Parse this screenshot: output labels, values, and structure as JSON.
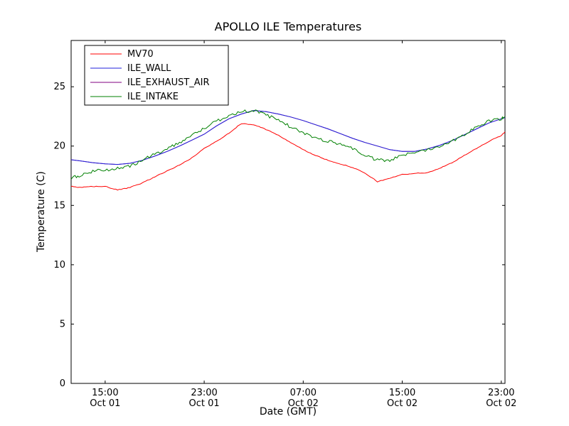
{
  "chart_data": {
    "type": "line",
    "title": "APOLLO ILE Temperatures",
    "xlabel": "Date (GMT)",
    "ylabel": "Temperature (C)",
    "x_description": "hours since Oct 01 00:00 GMT",
    "grid": false,
    "legend_position": "upper left",
    "background_color": "#ffffff",
    "frame_color": "#000000",
    "xlim": [
      12.25,
      47.3
    ],
    "ylim": [
      0,
      28.9
    ],
    "y_ticks": [
      0,
      5,
      10,
      15,
      20,
      25
    ],
    "x_ticks": [
      {
        "t": 15,
        "time": "15:00",
        "date": "Oct 01"
      },
      {
        "t": 23,
        "time": "23:00",
        "date": "Oct 01"
      },
      {
        "t": 31,
        "time": "07:00",
        "date": "Oct 02"
      },
      {
        "t": 39,
        "time": "15:00",
        "date": "Oct 02"
      },
      {
        "t": 47,
        "time": "23:00",
        "date": "Oct 02"
      }
    ],
    "x": [
      12.25,
      13,
      14,
      15,
      16,
      17,
      18,
      19,
      20,
      21,
      22,
      23,
      24,
      25,
      26,
      27,
      28,
      29,
      30,
      31,
      32,
      33,
      34,
      35,
      36,
      37,
      38,
      39,
      40,
      41,
      42,
      43,
      44,
      45,
      46,
      47,
      47.3
    ],
    "series": [
      {
        "name": "MV70",
        "color": "#ff0000",
        "zorder": 2,
        "noise": 0.03,
        "values": [
          16.6,
          16.5,
          16.6,
          16.6,
          16.3,
          16.5,
          16.9,
          17.4,
          17.9,
          18.4,
          19.0,
          19.8,
          20.4,
          21.1,
          21.9,
          21.8,
          21.4,
          20.9,
          20.3,
          19.7,
          19.2,
          18.8,
          18.5,
          18.2,
          17.7,
          17.0,
          17.3,
          17.6,
          17.7,
          17.75,
          18.1,
          18.6,
          19.2,
          19.8,
          20.4,
          20.9,
          21.2
        ]
      },
      {
        "name": "ILE_WALL",
        "color": "#2222dd",
        "zorder": 3,
        "noise": 0,
        "values": [
          18.85,
          18.75,
          18.6,
          18.5,
          18.45,
          18.55,
          18.8,
          19.15,
          19.55,
          20.0,
          20.5,
          21.0,
          21.7,
          22.3,
          22.7,
          23.0,
          22.9,
          22.7,
          22.45,
          22.15,
          21.8,
          21.45,
          21.05,
          20.65,
          20.3,
          20.0,
          19.7,
          19.55,
          19.55,
          19.75,
          20.05,
          20.45,
          20.95,
          21.45,
          21.95,
          22.3,
          22.4
        ]
      },
      {
        "name": "ILE_EXHAUST_AIR",
        "color": "#800080",
        "zorder": 1,
        "noise": 0,
        "values": [
          18.85,
          18.75,
          18.6,
          18.5,
          18.45,
          18.55,
          18.8,
          19.15,
          19.55,
          20.0,
          20.5,
          21.0,
          21.7,
          22.3,
          22.7,
          23.0,
          22.9,
          22.7,
          22.45,
          22.15,
          21.8,
          21.45,
          21.05,
          20.65,
          20.3,
          20.0,
          19.7,
          19.55,
          19.55,
          19.75,
          20.05,
          20.45,
          20.95,
          21.45,
          21.95,
          22.3,
          22.4
        ]
      },
      {
        "name": "ILE_INTAKE",
        "color": "#008000",
        "zorder": 4,
        "noise": 0.13,
        "values": [
          17.3,
          17.5,
          17.9,
          18.0,
          18.1,
          18.3,
          18.8,
          19.3,
          19.8,
          20.3,
          20.9,
          21.5,
          22.1,
          22.6,
          22.9,
          23.0,
          22.6,
          22.2,
          21.6,
          21.1,
          20.7,
          20.4,
          20.2,
          19.8,
          19.2,
          18.8,
          18.8,
          19.2,
          19.5,
          19.7,
          20.0,
          20.4,
          21.0,
          21.6,
          22.1,
          22.3,
          22.5
        ]
      }
    ]
  }
}
